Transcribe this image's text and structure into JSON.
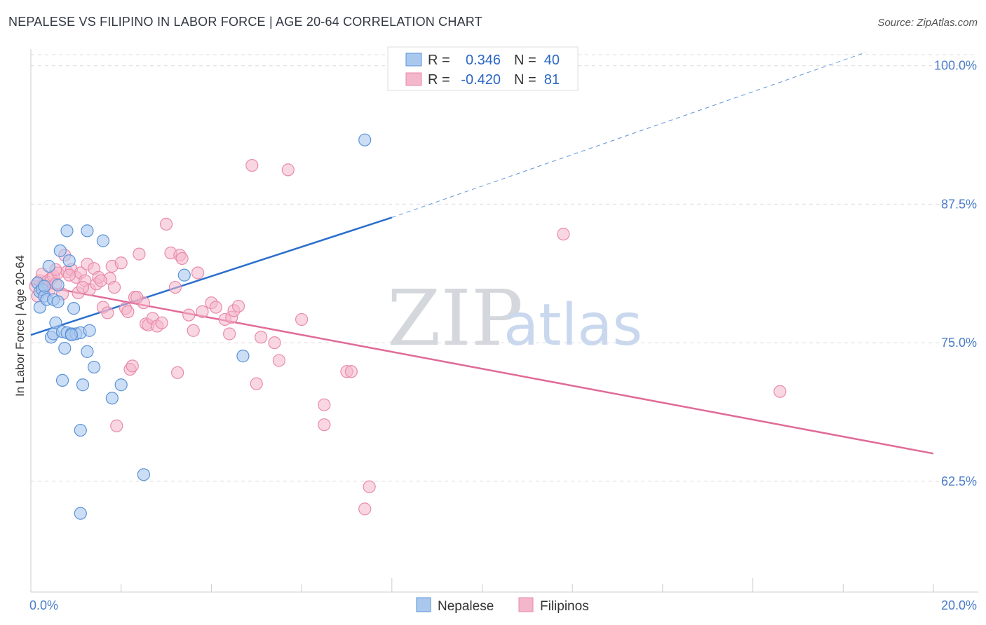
{
  "title": "NEPALESE VS FILIPINO IN LABOR FORCE | AGE 20-64 CORRELATION CHART",
  "source": "Source: ZipAtlas.com",
  "watermark": {
    "zip": "ZIP",
    "atlas": "atlas"
  },
  "colors": {
    "nepalese_fill": "#aac8ee",
    "nepalese_stroke": "#5b93d8",
    "nepalese_line": "#2b6fcc",
    "filipino_fill": "#f4b6cb",
    "filipino_stroke": "#e98aab",
    "filipino_line": "#e06b98",
    "grid": "#dcdcdc",
    "tick_label": "#4a7cc9"
  },
  "legend": {
    "rows": [
      {
        "r_label": "R =",
        "r_value": "0.346",
        "n_label": "N =",
        "n_value": "40"
      },
      {
        "r_label": "R =",
        "r_value": "-0.420",
        "n_label": "N =",
        "n_value": "81"
      }
    ]
  },
  "chart_data": {
    "type": "scatter",
    "xlabel": "",
    "ylabel": "In Labor Force | Age 20-64",
    "xlim": [
      0,
      20
    ],
    "ylim": [
      52.5,
      101.5
    ],
    "x_tick_labels": [
      "0.0%",
      "20.0%"
    ],
    "y_ticks": [
      100,
      87.5,
      75,
      62.5
    ],
    "y_tick_labels": [
      "100.0%",
      "87.5%",
      "75.0%",
      "62.5%"
    ],
    "grid": true,
    "legend_position": "top-center",
    "series": [
      {
        "name": "Nepalese",
        "points": [
          [
            0.15,
            80.4
          ],
          [
            0.2,
            79.6
          ],
          [
            0.25,
            79.8
          ],
          [
            0.3,
            79.2
          ],
          [
            0.2,
            78.2
          ],
          [
            0.35,
            78.9
          ],
          [
            0.4,
            81.9
          ],
          [
            0.5,
            78.9
          ],
          [
            0.45,
            75.5
          ],
          [
            0.5,
            75.8
          ],
          [
            0.55,
            76.8
          ],
          [
            0.6,
            80.2
          ],
          [
            0.7,
            76.0
          ],
          [
            0.65,
            83.3
          ],
          [
            0.75,
            74.5
          ],
          [
            0.7,
            71.6
          ],
          [
            0.8,
            75.9
          ],
          [
            0.85,
            82.4
          ],
          [
            0.8,
            85.1
          ],
          [
            0.9,
            75.8
          ],
          [
            0.95,
            78.1
          ],
          [
            1.0,
            75.8
          ],
          [
            1.1,
            67.1
          ],
          [
            1.1,
            75.9
          ],
          [
            1.15,
            71.2
          ],
          [
            1.25,
            74.2
          ],
          [
            1.3,
            76.1
          ],
          [
            1.4,
            72.8
          ],
          [
            1.25,
            85.1
          ],
          [
            1.6,
            84.2
          ],
          [
            1.8,
            70.0
          ],
          [
            2.0,
            71.2
          ],
          [
            2.5,
            63.1
          ],
          [
            3.4,
            81.1
          ],
          [
            4.7,
            73.8
          ],
          [
            7.4,
            93.3
          ],
          [
            1.1,
            59.6
          ],
          [
            0.3,
            80.1
          ],
          [
            0.6,
            78.7
          ],
          [
            0.9,
            75.7
          ]
        ],
        "trend": {
          "x": [
            0,
            8
          ],
          "y": [
            75.7,
            86.3
          ],
          "dashed_to": [
            18.5,
            101.2
          ]
        }
      },
      {
        "name": "Filipinos",
        "points": [
          [
            0.1,
            80.1
          ],
          [
            0.15,
            79.2
          ],
          [
            0.2,
            80.6
          ],
          [
            0.25,
            81.2
          ],
          [
            0.3,
            79.9
          ],
          [
            0.35,
            80.5
          ],
          [
            0.4,
            79.7
          ],
          [
            0.45,
            80.8
          ],
          [
            0.5,
            81.0
          ],
          [
            0.55,
            80.3
          ],
          [
            0.6,
            81.3
          ],
          [
            0.7,
            79.4
          ],
          [
            0.75,
            82.9
          ],
          [
            0.8,
            81.4
          ],
          [
            0.9,
            81.6
          ],
          [
            1.0,
            80.9
          ],
          [
            1.05,
            79.5
          ],
          [
            1.1,
            81.3
          ],
          [
            1.2,
            80.6
          ],
          [
            1.25,
            82.1
          ],
          [
            1.3,
            79.8
          ],
          [
            1.4,
            81.7
          ],
          [
            1.45,
            80.3
          ],
          [
            1.5,
            80.9
          ],
          [
            1.6,
            78.2
          ],
          [
            1.7,
            77.7
          ],
          [
            1.75,
            80.8
          ],
          [
            1.8,
            81.9
          ],
          [
            1.85,
            80.0
          ],
          [
            1.9,
            67.5
          ],
          [
            2.0,
            82.2
          ],
          [
            2.1,
            78.1
          ],
          [
            2.15,
            77.8
          ],
          [
            2.2,
            72.6
          ],
          [
            2.25,
            72.9
          ],
          [
            2.3,
            79.1
          ],
          [
            2.4,
            83.0
          ],
          [
            2.5,
            78.6
          ],
          [
            2.55,
            76.7
          ],
          [
            2.6,
            76.6
          ],
          [
            2.7,
            77.2
          ],
          [
            2.8,
            76.5
          ],
          [
            2.9,
            76.8
          ],
          [
            3.0,
            85.7
          ],
          [
            3.1,
            83.1
          ],
          [
            3.2,
            80.0
          ],
          [
            3.25,
            72.3
          ],
          [
            3.3,
            82.9
          ],
          [
            3.35,
            82.6
          ],
          [
            3.5,
            77.5
          ],
          [
            3.6,
            76.1
          ],
          [
            3.7,
            81.3
          ],
          [
            3.8,
            77.8
          ],
          [
            4.0,
            78.6
          ],
          [
            4.1,
            78.2
          ],
          [
            4.3,
            77.1
          ],
          [
            4.4,
            75.8
          ],
          [
            4.45,
            77.3
          ],
          [
            4.5,
            77.9
          ],
          [
            4.6,
            78.3
          ],
          [
            4.9,
            91.0
          ],
          [
            5.0,
            71.3
          ],
          [
            5.1,
            75.5
          ],
          [
            5.4,
            75.0
          ],
          [
            5.5,
            73.4
          ],
          [
            5.7,
            90.6
          ],
          [
            6.0,
            77.1
          ],
          [
            6.5,
            69.4
          ],
          [
            6.5,
            67.6
          ],
          [
            7.0,
            72.4
          ],
          [
            7.1,
            72.4
          ],
          [
            7.4,
            60.0
          ],
          [
            7.5,
            62.0
          ],
          [
            11.8,
            84.8
          ],
          [
            16.6,
            70.6
          ],
          [
            0.55,
            81.6
          ],
          [
            0.85,
            81.1
          ],
          [
            1.15,
            80.0
          ],
          [
            1.55,
            80.6
          ],
          [
            2.35,
            79.1
          ],
          [
            0.25,
            80.1
          ]
        ],
        "trend": {
          "x": [
            0,
            20
          ],
          "y": [
            80.3,
            65.0
          ]
        }
      }
    ]
  }
}
